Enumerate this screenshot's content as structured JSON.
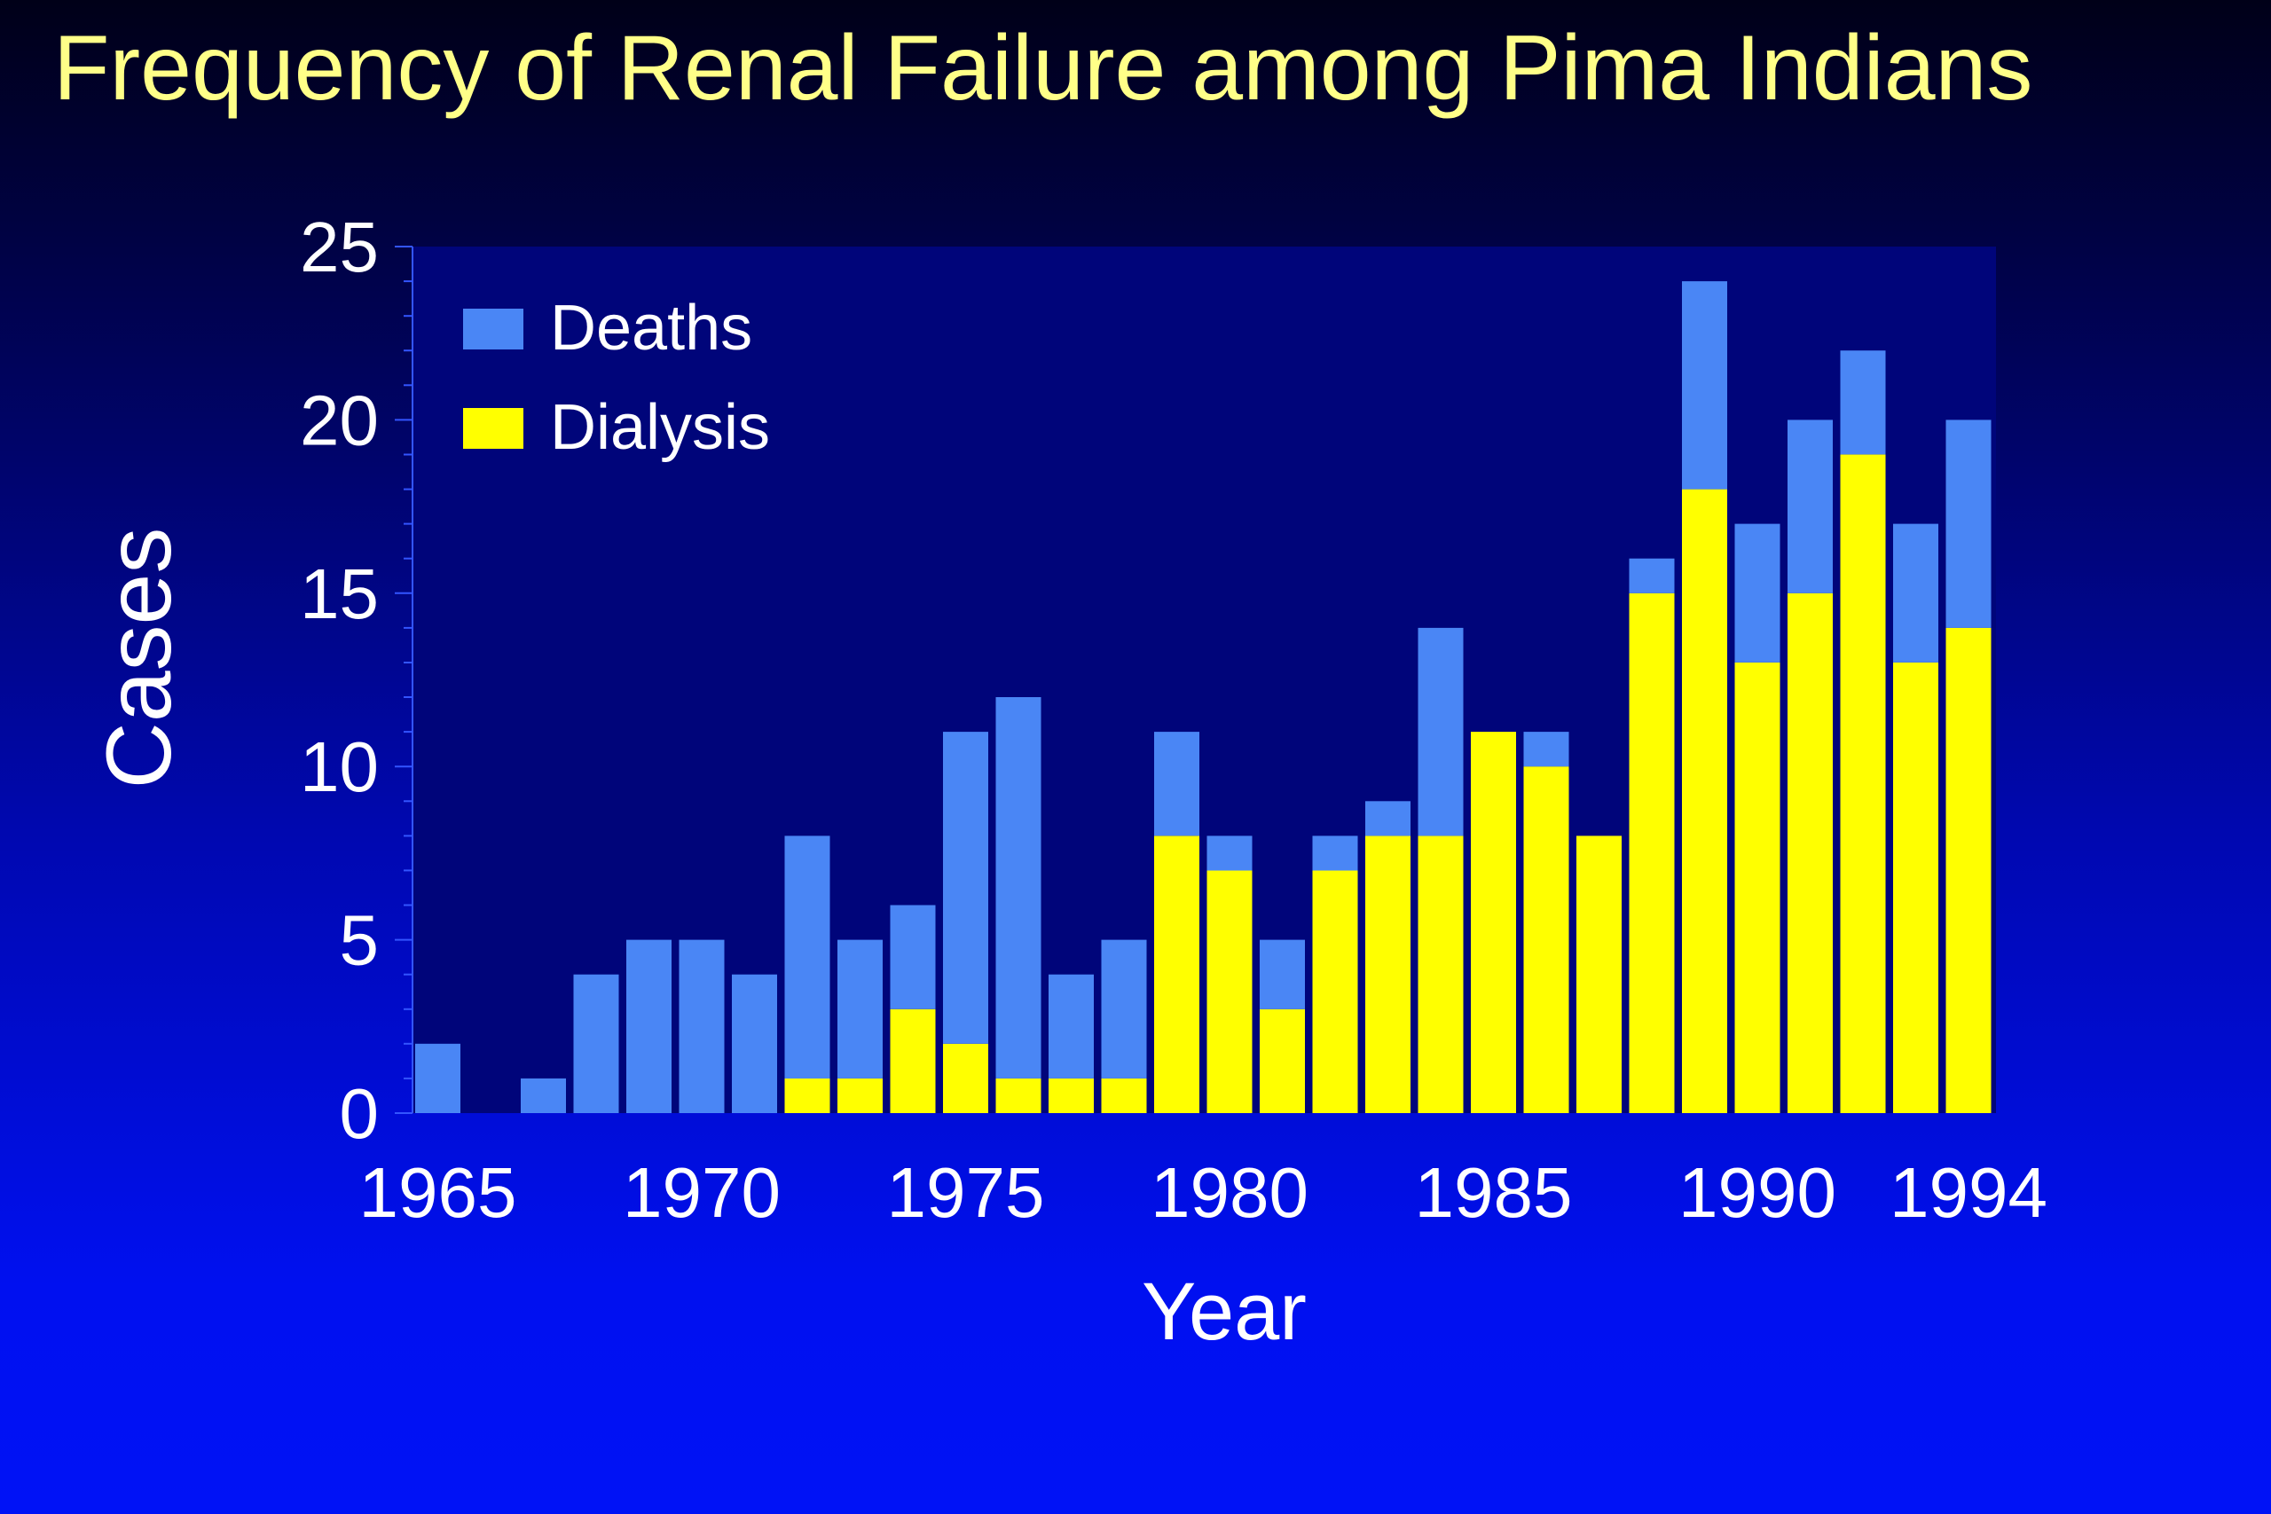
{
  "chart_data": {
    "type": "bar",
    "stacked": true,
    "title": "Frequency of Renal Failure among Pima Indians",
    "xlabel": "Year",
    "ylabel": "Cases",
    "ylim": [
      0,
      25
    ],
    "yticks": [
      0,
      5,
      10,
      15,
      20,
      25
    ],
    "xticks": [
      1965,
      1970,
      1975,
      1980,
      1985,
      1990,
      1994
    ],
    "legend_position": "top-left",
    "grid": false,
    "categories": [
      1965,
      1966,
      1967,
      1968,
      1969,
      1970,
      1971,
      1972,
      1973,
      1974,
      1975,
      1976,
      1977,
      1978,
      1979,
      1980,
      1981,
      1982,
      1983,
      1984,
      1985,
      1986,
      1987,
      1988,
      1989,
      1990,
      1991,
      1992,
      1993,
      1994
    ],
    "series": [
      {
        "name": "Dialysis",
        "color": "#ffff00",
        "values": [
          0,
          0,
          0,
          0,
          0,
          0,
          0,
          1,
          1,
          3,
          2,
          1,
          1,
          1,
          8,
          7,
          3,
          7,
          8,
          8,
          11,
          10,
          8,
          15,
          18,
          13,
          15,
          19,
          13,
          14
        ]
      },
      {
        "name": "Deaths",
        "color": "#4a86f5",
        "values": [
          2,
          0,
          1,
          4,
          5,
          5,
          4,
          7,
          4,
          3,
          9,
          11,
          3,
          4,
          3,
          1,
          2,
          1,
          1,
          6,
          0,
          1,
          0,
          1,
          6,
          4,
          5,
          3,
          4,
          6
        ]
      }
    ],
    "legend_order": [
      "Deaths",
      "Dialysis"
    ]
  }
}
